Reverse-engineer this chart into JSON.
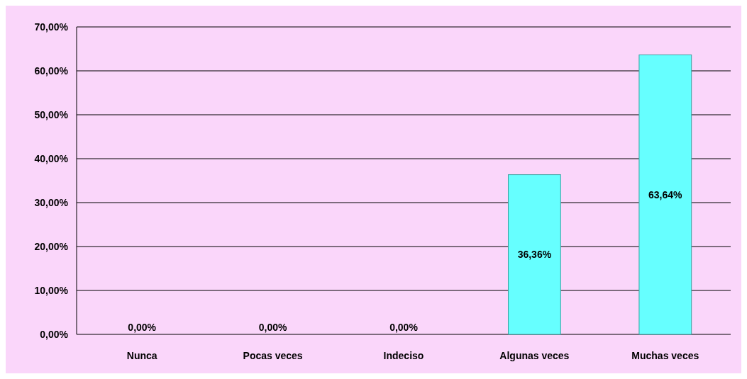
{
  "chart_data": {
    "type": "bar",
    "categories": [
      "Nunca",
      "Pocas veces",
      "Indeciso",
      "Algunas veces",
      "Muchas veces"
    ],
    "values": [
      0,
      0,
      0,
      36.36,
      63.64
    ],
    "color": "#66ffff",
    "value_labels": [
      "0,00%",
      "0,00%",
      "0,00%",
      "36,36%",
      "63,64%"
    ],
    "ylim": [
      0,
      70
    ],
    "yticks": [
      {
        "value": 0,
        "label": "0,00%"
      },
      {
        "value": 10,
        "label": "10,00%"
      },
      {
        "value": 20,
        "label": "20,00%"
      },
      {
        "value": 30,
        "label": "30,00%"
      },
      {
        "value": 40,
        "label": "40,00%"
      },
      {
        "value": 50,
        "label": "50,00%"
      },
      {
        "value": 60,
        "label": "60,00%"
      },
      {
        "value": 70,
        "label": "70,00%"
      }
    ],
    "grid": "y"
  }
}
